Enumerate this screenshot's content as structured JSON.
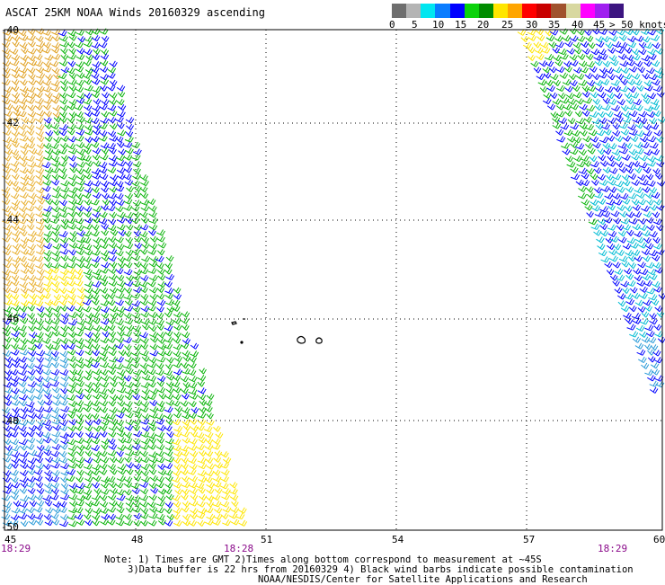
{
  "title": "ASCAT 25KM NOAA Winds 20160329 ascending",
  "speed_scale": {
    "colors": [
      "#6e6e6e",
      "#b4b4b4",
      "#00e6f0",
      "#0a7cff",
      "#0000ff",
      "#0ad20a",
      "#008c00",
      "#ffe600",
      "#ffa500",
      "#ff0000",
      "#c80000",
      "#a0522d",
      "#d8d8a0",
      "#ff00ff",
      "#a020f0",
      "#3c1480"
    ],
    "labels": [
      "0",
      "5",
      "10",
      "15",
      "20",
      "25",
      "30",
      "35",
      "40",
      "45",
      "> 50 knots"
    ]
  },
  "axes": {
    "x_ticks": [
      "45",
      "48",
      "51",
      "54",
      "57",
      "60"
    ],
    "y_ticks": [
      "-40",
      "-42",
      "-44",
      "-46",
      "-48",
      "-50"
    ]
  },
  "time_labels": [
    "18:29",
    "18:28",
    "18:29"
  ],
  "notes": [
    "Note: 1) Times are GMT 2)Times along bottom correspond to measurement at ~45S",
    "3)Data buffer is 22 hrs from 20160329 4) Black wind barbs indicate possible contamination",
    "NOAA/NESDIS/Center for Satellite Applications and Research"
  ]
}
